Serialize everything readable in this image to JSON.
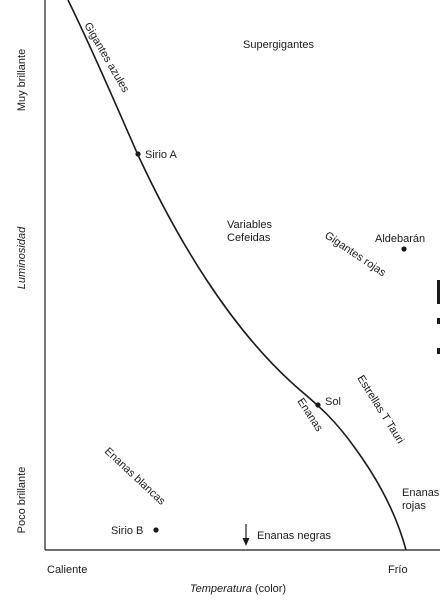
{
  "axes": {
    "y_label": "Luminosidad",
    "y_top": "Muy brillante",
    "y_bottom": "Poco brillante",
    "x_label": "Temperatura",
    "x_label_suffix": "(color)",
    "x_left": "Caliente",
    "x_right": "Frío"
  },
  "regions": {
    "supergiants": "Supergigantes",
    "blue_giants": "Gigantes azules",
    "cepheids_line1": "Variables",
    "cepheids_line2": "Cefeidas",
    "red_giants": "Gigantes rojas",
    "t_tauri": "Estrellas T Tauri",
    "dwarfs": "Enanas",
    "white_dwarfs": "Enanas blancas",
    "red_dwarfs_line1": "Enanas",
    "red_dwarfs_line2": "rojas",
    "black_dwarfs": "Enanas negras"
  },
  "stars": {
    "sirius_a": "Sirio A",
    "sol": "Sol",
    "aldebaran": "Aldebarán",
    "sirius_b": "Sirio B"
  }
}
